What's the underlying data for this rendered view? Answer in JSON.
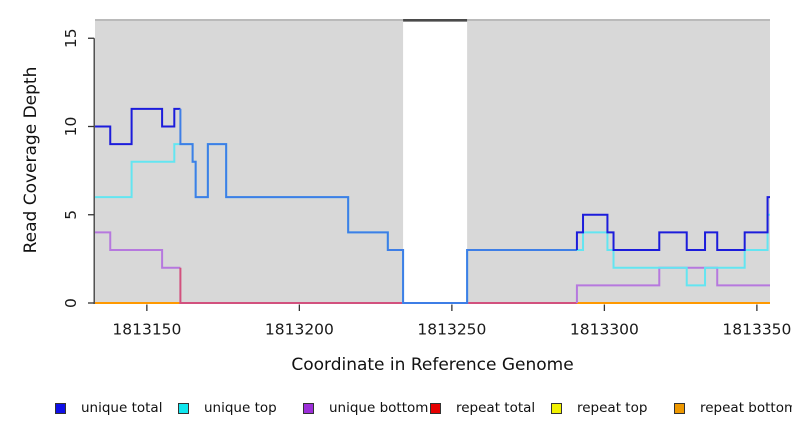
{
  "chart_data": {
    "type": "line",
    "subtype": "step-coverage-plot",
    "title": "",
    "xlabel": "Coordinate in Reference Genome",
    "ylabel": "Read Coverage Depth",
    "xlim": [
      1813133.0,
      1813354.3
    ],
    "ylim": [
      0,
      16.1
    ],
    "x_ticks": [
      1813150,
      1813200,
      1813250,
      1813300,
      1813350
    ],
    "y_ticks": [
      0,
      5,
      10,
      15
    ],
    "grid": false,
    "plot_background": "#D8D8D8",
    "page_background": "#FFFFFF",
    "axis_color": "#333333",
    "tick_label_color": "#1A1A1A",
    "gap_region": {
      "x_start": 1813234,
      "x_end": 1813255,
      "fill": "#FFFFFF",
      "top_edge_color": "#4A4A4A"
    },
    "plot_top_edge_color": "#B0B0B0",
    "draw_order": [
      "repeat total",
      "repeat top",
      "repeat bottom",
      "unique bottom",
      "unique top",
      "unique total"
    ],
    "series": [
      {
        "name": "unique total",
        "color": "#1C1CDB",
        "color_ranges": [
          {
            "from": 1813133.0,
            "to": 1813161,
            "color": "#1C1CDB"
          },
          {
            "from": 1813161,
            "to": 1813291,
            "color": "#3E7EE6"
          },
          {
            "from": 1813291,
            "to": 1813354.3,
            "color": "#1C1CDB"
          }
        ],
        "points": [
          [
            1813133,
            10
          ],
          [
            1813138,
            9
          ],
          [
            1813145,
            11
          ],
          [
            1813155,
            10
          ],
          [
            1813159,
            11
          ],
          [
            1813161,
            9
          ],
          [
            1813165,
            8
          ],
          [
            1813166,
            6
          ],
          [
            1813170,
            9
          ],
          [
            1813176,
            6
          ],
          [
            1813216,
            4
          ],
          [
            1813229,
            3
          ],
          [
            1813234,
            0
          ],
          [
            1813255,
            3
          ],
          [
            1813291,
            4
          ],
          [
            1813293,
            5
          ],
          [
            1813301,
            4
          ],
          [
            1813303,
            3
          ],
          [
            1813318,
            4
          ],
          [
            1813327,
            3
          ],
          [
            1813333,
            4
          ],
          [
            1813337,
            3
          ],
          [
            1813346,
            4
          ],
          [
            1813353.5,
            6
          ]
        ]
      },
      {
        "name": "unique top",
        "color": "#63E5F1",
        "points": [
          [
            1813133,
            6
          ],
          [
            1813145,
            8
          ],
          [
            1813159,
            9
          ],
          [
            1813165,
            8
          ],
          [
            1813166,
            6
          ],
          [
            1813170,
            9
          ],
          [
            1813176,
            6
          ],
          [
            1813216,
            4
          ],
          [
            1813229,
            3
          ],
          [
            1813234,
            0
          ],
          [
            1813255,
            3
          ],
          [
            1813293,
            4
          ],
          [
            1813301,
            3
          ],
          [
            1813303,
            2
          ],
          [
            1813327,
            1
          ],
          [
            1813333,
            2
          ],
          [
            1813346,
            3
          ],
          [
            1813353.5,
            5
          ]
        ]
      },
      {
        "name": "unique bottom",
        "color": "#B678DE",
        "color_ranges": [
          {
            "from": 1813133.0,
            "to": 1813161,
            "color": "#B678DE"
          },
          {
            "from": 1813161,
            "to": 1813291,
            "color": "#D2517E"
          },
          {
            "from": 1813291,
            "to": 1813354.3,
            "color": "#B678DE"
          }
        ],
        "points": [
          [
            1813133,
            4
          ],
          [
            1813138,
            3
          ],
          [
            1813155,
            2
          ],
          [
            1813161,
            0
          ],
          [
            1813291,
            1
          ],
          [
            1813318,
            2
          ],
          [
            1813337,
            1
          ]
        ]
      },
      {
        "name": "repeat total",
        "color": "#E60000",
        "points": [
          [
            1813133,
            0
          ]
        ]
      },
      {
        "name": "repeat top",
        "color": "#EFEF00",
        "points": [
          [
            1813133,
            0
          ]
        ]
      },
      {
        "name": "repeat bottom",
        "color": "#FF9900",
        "points": [
          [
            1813133,
            0
          ]
        ]
      }
    ]
  },
  "legend": {
    "items": [
      {
        "label": "unique total",
        "color": "#0F0FE8"
      },
      {
        "label": "unique top",
        "color": "#10E6EE"
      },
      {
        "label": "unique bottom",
        "color": "#9C2FD9"
      },
      {
        "label": "repeat total",
        "color": "#E60000"
      },
      {
        "label": "repeat top",
        "color": "#F0F000"
      },
      {
        "label": "repeat bottom",
        "color": "#EE9800"
      }
    ]
  }
}
